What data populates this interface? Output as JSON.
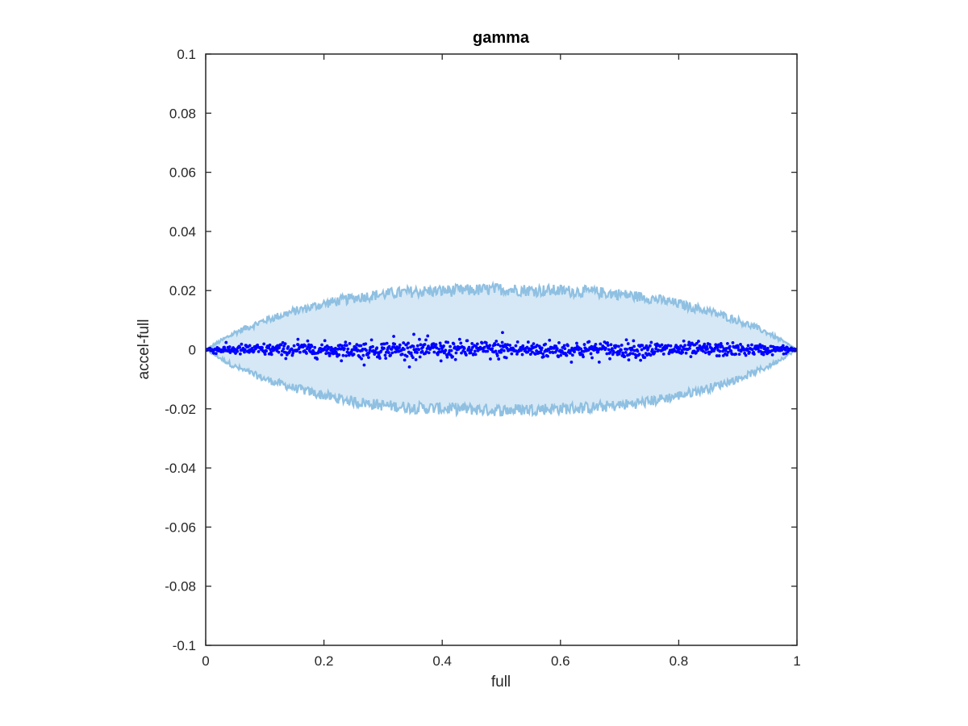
{
  "chart_data": {
    "type": "scatter",
    "title": "gamma",
    "xlabel": "full",
    "ylabel": "accel-full",
    "xlim": [
      0,
      1
    ],
    "ylim": [
      -0.1,
      0.1
    ],
    "x_ticks": [
      0,
      0.2,
      0.4,
      0.6,
      0.8,
      1
    ],
    "x_tick_labels": [
      "0",
      "0.2",
      "0.4",
      "0.6",
      "0.8",
      "1"
    ],
    "y_ticks": [
      0.1,
      0.08,
      0.06,
      0.04,
      0.02,
      0,
      -0.02,
      -0.04,
      -0.06,
      -0.08,
      -0.1
    ],
    "y_tick_labels": [
      "0.1",
      "0.08",
      "0.06",
      "0.04",
      "0.02",
      "0",
      "-0.02",
      "-0.04",
      "-0.06",
      "-0.08",
      "-0.1"
    ],
    "grid": false,
    "legend": "none",
    "band": {
      "x": [
        0,
        0.05,
        0.1,
        0.15,
        0.2,
        0.25,
        0.3,
        0.35,
        0.4,
        0.45,
        0.5,
        0.55,
        0.6,
        0.65,
        0.7,
        0.75,
        0.8,
        0.85,
        0.9,
        0.95,
        1
      ],
      "upper": [
        0.0,
        0.0058,
        0.0099,
        0.013,
        0.0155,
        0.0175,
        0.0188,
        0.0196,
        0.0199,
        0.0201,
        0.0205,
        0.0201,
        0.0199,
        0.0196,
        0.0188,
        0.0175,
        0.0155,
        0.013,
        0.0099,
        0.0058,
        0.0
      ],
      "lower": [
        0.0,
        -0.0058,
        -0.0099,
        -0.013,
        -0.0155,
        -0.0175,
        -0.0188,
        -0.0196,
        -0.0199,
        -0.0201,
        -0.0205,
        -0.0201,
        -0.0199,
        -0.0196,
        -0.0188,
        -0.0175,
        -0.0155,
        -0.013,
        -0.0099,
        -0.0058,
        0.0
      ]
    },
    "points": {
      "x_range": [
        0,
        1
      ],
      "count": 1000,
      "center": 0,
      "spread_scale": 0.0022,
      "outliers": [
        {
          "x": 0.318,
          "y": 0.0045
        },
        {
          "x": 0.352,
          "y": 0.0052
        },
        {
          "x": 0.502,
          "y": 0.0058
        },
        {
          "x": 0.268,
          "y": -0.0052
        },
        {
          "x": 0.156,
          "y": 0.0035
        },
        {
          "x": 0.398,
          "y": -0.0038
        }
      ]
    },
    "colors": {
      "band_fill": "#d6e8f5",
      "band_edge": "#8fc0e2",
      "points": "#0000ff",
      "axes": "#262626"
    }
  }
}
